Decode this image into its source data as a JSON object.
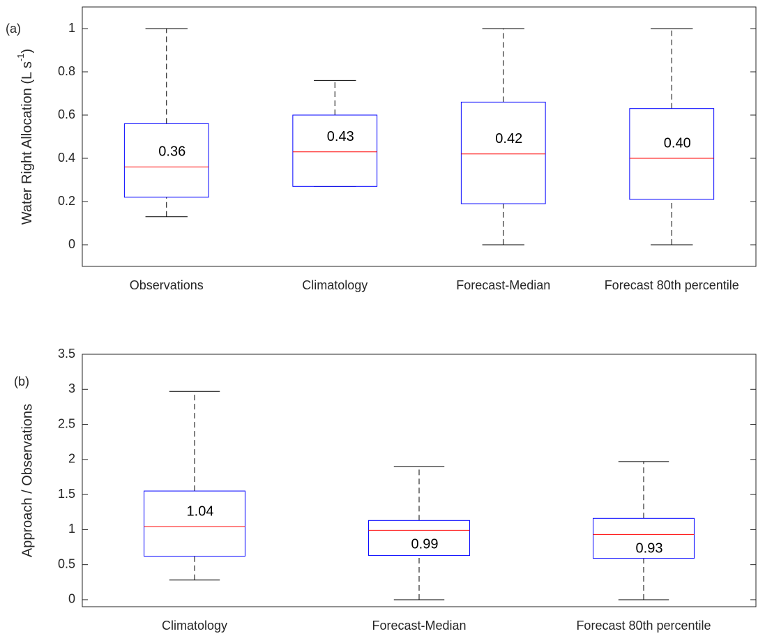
{
  "chart_data": [
    {
      "type": "box",
      "panel_label": "(a)",
      "ylabel": {
        "text": "Water Right Allocation  (L s",
        "superscript": "-1",
        "close": ")"
      },
      "categories": [
        "Observations",
        "Climatology",
        "Forecast-Median",
        "Forecast 80th percentile"
      ],
      "whislo": [
        0.13,
        0.27,
        0,
        0
      ],
      "q1": [
        0.22,
        0.27,
        0.19,
        0.21
      ],
      "median": [
        0.36,
        0.43,
        0.42,
        0.4
      ],
      "median_labels": [
        "0.36",
        "0.43",
        "0.42",
        "0.40"
      ],
      "q3": [
        0.56,
        0.6,
        0.66,
        0.63
      ],
      "whishi": [
        1.0,
        0.76,
        1.0,
        1.0
      ],
      "ylim": [
        -0.1,
        1.1
      ],
      "yticks": [
        0,
        0.2,
        0.4,
        0.6,
        0.8,
        1
      ],
      "box_color": "#0000ff",
      "median_color": "#ff0000",
      "whisker_color": "#000000"
    },
    {
      "type": "box",
      "panel_label": "(b)",
      "ylabel": "Approach / Observations",
      "categories": [
        "Climatology",
        "Forecast-Median",
        "Forecast 80th percentile"
      ],
      "whislo": [
        0.28,
        0,
        0
      ],
      "q1": [
        0.62,
        0.63,
        0.59
      ],
      "median": [
        1.04,
        0.99,
        0.93
      ],
      "median_labels": [
        "1.04",
        "0.99",
        "0.93"
      ],
      "q3": [
        1.55,
        1.13,
        1.16
      ],
      "whishi": [
        2.97,
        1.9,
        1.97
      ],
      "ylim": [
        -0.1,
        3.5
      ],
      "yticks": [
        0,
        0.5,
        1,
        1.5,
        2,
        2.5,
        3,
        3.5
      ],
      "box_color": "#0000ff",
      "median_color": "#ff0000",
      "whisker_color": "#000000"
    }
  ]
}
